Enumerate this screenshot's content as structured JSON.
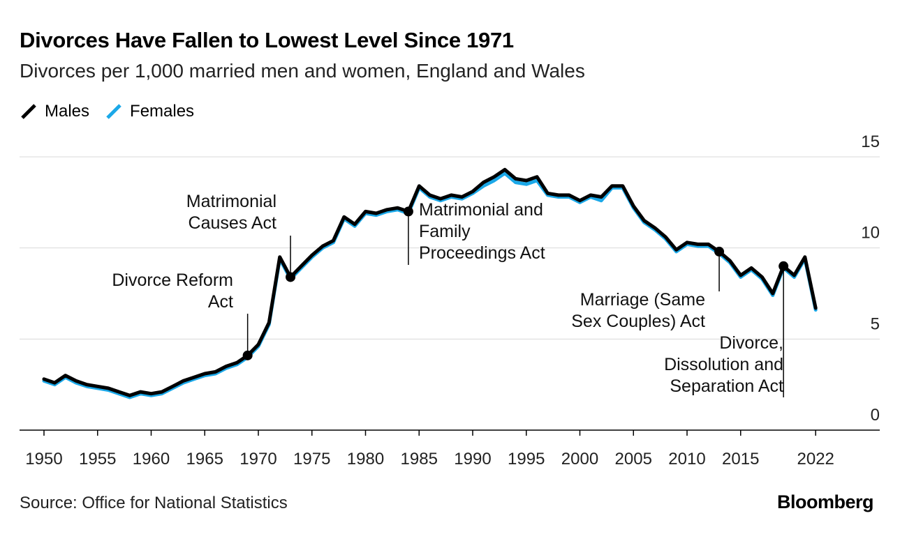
{
  "header": {
    "title": "Divorces Have Fallen to Lowest Level Since 1971",
    "subtitle": "Divorces per 1,000 married men and women, England and Wales"
  },
  "legend": {
    "males_label": "Males",
    "females_label": "Females"
  },
  "footer": {
    "source": "Source: Office for National Statistics",
    "brand": "Bloomberg"
  },
  "colors": {
    "males": "#000000",
    "females": "#1ba8e8",
    "grid": "#d9d9d9",
    "axis": "#000000"
  },
  "chart_data": {
    "type": "line",
    "title": "Divorces Have Fallen to Lowest Level Since 1971",
    "xlabel": "",
    "ylabel": "Divorces per 1,000 married men and women",
    "xlim": [
      1948,
      2025
    ],
    "ylim": [
      0,
      15
    ],
    "yticks": [
      0,
      5,
      10,
      15
    ],
    "xticks": [
      1950,
      1955,
      1960,
      1965,
      1970,
      1975,
      1980,
      1985,
      1990,
      1995,
      2000,
      2005,
      2010,
      2015,
      2022
    ],
    "grid": true,
    "legend_position": "top-left",
    "x": [
      1950,
      1951,
      1952,
      1953,
      1954,
      1955,
      1956,
      1957,
      1958,
      1959,
      1960,
      1961,
      1962,
      1963,
      1964,
      1965,
      1966,
      1967,
      1968,
      1969,
      1970,
      1971,
      1972,
      1973,
      1974,
      1975,
      1976,
      1977,
      1978,
      1979,
      1980,
      1981,
      1982,
      1983,
      1984,
      1985,
      1986,
      1987,
      1988,
      1989,
      1990,
      1991,
      1992,
      1993,
      1994,
      1995,
      1996,
      1997,
      1998,
      1999,
      2000,
      2001,
      2002,
      2003,
      2004,
      2005,
      2006,
      2007,
      2008,
      2009,
      2010,
      2011,
      2012,
      2013,
      2014,
      2015,
      2016,
      2017,
      2018,
      2019,
      2020,
      2021,
      2022
    ],
    "series": [
      {
        "name": "Males",
        "values": [
          2.8,
          2.6,
          3.0,
          2.7,
          2.5,
          2.4,
          2.3,
          2.1,
          1.9,
          2.1,
          2.0,
          2.1,
          2.4,
          2.7,
          2.9,
          3.1,
          3.2,
          3.5,
          3.7,
          4.1,
          4.7,
          5.9,
          9.5,
          8.4,
          9.0,
          9.6,
          10.1,
          10.4,
          11.7,
          11.3,
          12.0,
          11.9,
          12.1,
          12.2,
          12.0,
          13.4,
          12.9,
          12.7,
          12.9,
          12.8,
          13.1,
          13.6,
          13.9,
          14.3,
          13.8,
          13.7,
          13.9,
          13.0,
          12.9,
          12.9,
          12.6,
          12.9,
          12.8,
          13.4,
          13.4,
          12.3,
          11.5,
          11.1,
          10.6,
          9.9,
          10.3,
          10.2,
          10.2,
          9.8,
          9.3,
          8.5,
          8.9,
          8.4,
          7.5,
          9.0,
          8.5,
          9.5,
          6.7
        ]
      },
      {
        "name": "Females",
        "values": [
          2.7,
          2.5,
          2.9,
          2.6,
          2.4,
          2.3,
          2.2,
          2.0,
          1.8,
          2.0,
          1.9,
          2.0,
          2.3,
          2.6,
          2.8,
          3.0,
          3.1,
          3.4,
          3.6,
          4.0,
          4.6,
          5.8,
          9.4,
          8.3,
          8.9,
          9.5,
          10.0,
          10.3,
          11.6,
          11.2,
          11.9,
          11.8,
          12.0,
          12.1,
          11.9,
          13.3,
          12.8,
          12.6,
          12.8,
          12.7,
          13.0,
          13.4,
          13.7,
          14.1,
          13.6,
          13.5,
          13.7,
          12.9,
          12.8,
          12.8,
          12.5,
          12.8,
          12.6,
          13.3,
          13.3,
          12.2,
          11.4,
          11.0,
          10.5,
          9.8,
          10.2,
          10.1,
          10.1,
          9.7,
          9.2,
          8.4,
          8.8,
          8.3,
          7.4,
          8.9,
          8.4,
          9.4,
          6.6
        ]
      }
    ],
    "annotations": [
      {
        "year": 1969,
        "lines": [
          "Divorce Reform",
          "Act"
        ],
        "side": "left"
      },
      {
        "year": 1973,
        "lines": [
          "Matrimonial",
          "Causes Act"
        ],
        "side": "left"
      },
      {
        "year": 1984,
        "lines": [
          "Matrimonial and",
          "Family",
          "Proceedings Act"
        ],
        "side": "right"
      },
      {
        "year": 2013,
        "lines": [
          "Marriage (Same",
          "Sex Couples) Act"
        ],
        "side": "left"
      },
      {
        "year": 2019,
        "lines": [
          "Divorce,",
          "Dissolution and",
          "Separation Act"
        ],
        "side": "left"
      }
    ]
  }
}
